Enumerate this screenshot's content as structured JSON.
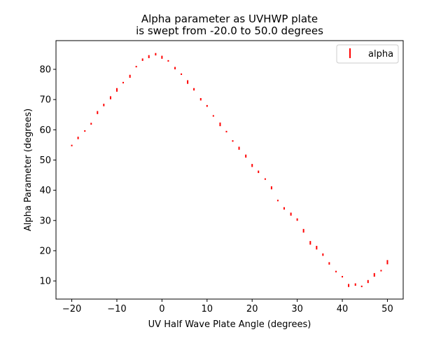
{
  "chart_data": {
    "type": "scatter",
    "title_lines": [
      "Alpha parameter as UVHWP plate",
      "is swept from -20.0 to 50.0 degrees"
    ],
    "xlabel": "UV Half Wave Plate Angle (degrees)",
    "ylabel": "Alpha Parameter (degrees)",
    "xlim": [
      -23.5,
      53.5
    ],
    "ylim": [
      4.0,
      89.5
    ],
    "xticks": [
      -20,
      -10,
      0,
      10,
      20,
      30,
      40,
      50
    ],
    "xtick_labels": [
      "−20",
      "−10",
      "0",
      "10",
      "20",
      "30",
      "40",
      "50"
    ],
    "yticks": [
      10,
      20,
      30,
      40,
      50,
      60,
      70,
      80
    ],
    "ytick_labels": [
      "10",
      "20",
      "30",
      "40",
      "50",
      "60",
      "70",
      "80"
    ],
    "grid": false,
    "legend": {
      "placement": "top-right",
      "entries": [
        "alpha"
      ]
    },
    "series": [
      {
        "name": "alpha",
        "color": "#ff0000",
        "marker": "error-bar",
        "points": [
          {
            "x": -20.0,
            "y": 54.8,
            "err": 0.25
          },
          {
            "x": -18.6,
            "y": 57.3,
            "err": 0.4
          },
          {
            "x": -17.1,
            "y": 59.6,
            "err": 0.25
          },
          {
            "x": -15.7,
            "y": 62.0,
            "err": 0.3
          },
          {
            "x": -14.3,
            "y": 65.7,
            "err": 0.5
          },
          {
            "x": -12.9,
            "y": 68.2,
            "err": 0.4
          },
          {
            "x": -11.4,
            "y": 70.6,
            "err": 0.5
          },
          {
            "x": -10.0,
            "y": 73.2,
            "err": 0.6
          },
          {
            "x": -8.6,
            "y": 75.6,
            "err": 0.25
          },
          {
            "x": -7.1,
            "y": 77.7,
            "err": 0.5
          },
          {
            "x": -5.7,
            "y": 80.9,
            "err": 0.25
          },
          {
            "x": -4.3,
            "y": 83.2,
            "err": 0.4
          },
          {
            "x": -2.9,
            "y": 84.2,
            "err": 0.5
          },
          {
            "x": -1.4,
            "y": 85.0,
            "err": 0.4
          },
          {
            "x": 0.0,
            "y": 84.0,
            "err": 0.5
          },
          {
            "x": 1.4,
            "y": 82.8,
            "err": 0.25
          },
          {
            "x": 2.9,
            "y": 80.4,
            "err": 0.4
          },
          {
            "x": 4.3,
            "y": 78.4,
            "err": 0.25
          },
          {
            "x": 5.7,
            "y": 75.8,
            "err": 0.6
          },
          {
            "x": 7.1,
            "y": 73.4,
            "err": 0.4
          },
          {
            "x": 8.6,
            "y": 70.1,
            "err": 0.4
          },
          {
            "x": 10.0,
            "y": 67.9,
            "err": 0.3
          },
          {
            "x": 11.4,
            "y": 64.6,
            "err": 0.25
          },
          {
            "x": 12.9,
            "y": 61.8,
            "err": 0.6
          },
          {
            "x": 14.3,
            "y": 59.4,
            "err": 0.25
          },
          {
            "x": 15.7,
            "y": 56.3,
            "err": 0.25
          },
          {
            "x": 17.1,
            "y": 53.9,
            "err": 0.5
          },
          {
            "x": 18.6,
            "y": 51.3,
            "err": 0.5
          },
          {
            "x": 20.0,
            "y": 48.2,
            "err": 0.5
          },
          {
            "x": 21.4,
            "y": 46.1,
            "err": 0.4
          },
          {
            "x": 22.9,
            "y": 43.7,
            "err": 0.25
          },
          {
            "x": 24.3,
            "y": 40.8,
            "err": 0.5
          },
          {
            "x": 25.7,
            "y": 36.6,
            "err": 0.25
          },
          {
            "x": 27.1,
            "y": 34.0,
            "err": 0.4
          },
          {
            "x": 28.6,
            "y": 32.1,
            "err": 0.5
          },
          {
            "x": 30.0,
            "y": 30.3,
            "err": 0.4
          },
          {
            "x": 31.4,
            "y": 26.6,
            "err": 0.6
          },
          {
            "x": 32.9,
            "y": 22.6,
            "err": 0.6
          },
          {
            "x": 34.3,
            "y": 21.0,
            "err": 0.6
          },
          {
            "x": 35.7,
            "y": 18.7,
            "err": 0.4
          },
          {
            "x": 37.1,
            "y": 15.8,
            "err": 0.4
          },
          {
            "x": 38.6,
            "y": 13.1,
            "err": 0.25
          },
          {
            "x": 40.0,
            "y": 11.4,
            "err": 0.25
          },
          {
            "x": 41.4,
            "y": 8.5,
            "err": 0.5
          },
          {
            "x": 42.9,
            "y": 8.8,
            "err": 0.4
          },
          {
            "x": 44.3,
            "y": 8.2,
            "err": 0.25
          },
          {
            "x": 45.7,
            "y": 9.8,
            "err": 0.5
          },
          {
            "x": 47.1,
            "y": 12.0,
            "err": 0.6
          },
          {
            "x": 48.6,
            "y": 13.4,
            "err": 0.25
          },
          {
            "x": 50.0,
            "y": 16.2,
            "err": 0.7
          }
        ]
      }
    ]
  }
}
